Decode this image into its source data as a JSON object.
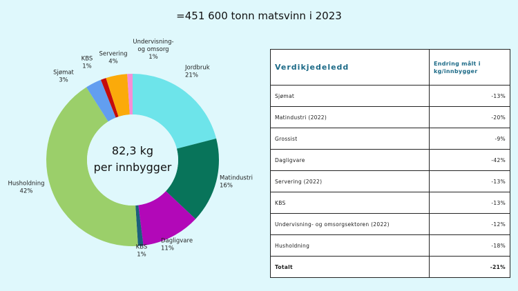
{
  "title": "=451 600 tonn matsvinn i 2023",
  "chart_data": {
    "type": "pie",
    "center_text": [
      "82,3 kg",
      "per innbygger"
    ],
    "slices": [
      {
        "label": "Jordbruk",
        "value": 21,
        "pct": "21%",
        "color": "#6de4ea"
      },
      {
        "label": "Matindustri",
        "value": 16,
        "pct": "16%",
        "color": "#08745a"
      },
      {
        "label": "Dagligvare",
        "value": 11,
        "pct": "11%",
        "color": "#b208b8"
      },
      {
        "label": "KBS",
        "value": 1,
        "pct": "1%",
        "color": "#1c5f7a"
      },
      {
        "label": "Husholdning",
        "value": 42,
        "pct": "42%",
        "color": "#9bcf6a"
      },
      {
        "label": "Sjømat",
        "value": 3,
        "pct": "3%",
        "color": "#629ef0"
      },
      {
        "label": "KBS",
        "value": 1,
        "pct": "1%",
        "color": "#c40c0c"
      },
      {
        "label": "Servering",
        "value": 4,
        "pct": "4%",
        "color": "#fbaa0a"
      },
      {
        "label": "Undervisning- og omsorg",
        "value": 1,
        "pct": "1%",
        "color": "#f78ed6"
      }
    ]
  },
  "table": {
    "header": [
      "Verdikjedeledd",
      "Endring målt i kg/innbygger"
    ],
    "rows": [
      {
        "name": "Sjømat",
        "value": "-13%"
      },
      {
        "name": "Matindustri (2022)",
        "value": "-20%"
      },
      {
        "name": "Grossist",
        "value": "-9%"
      },
      {
        "name": "Dagligvare",
        "value": "-42%"
      },
      {
        "name": "Servering (2022)",
        "value": "-13%"
      },
      {
        "name": "KBS",
        "value": "-13%"
      },
      {
        "name": "Undervisning- og omsorgsektoren (2022)",
        "value": "-12%"
      },
      {
        "name": "Husholdning",
        "value": "-18%"
      }
    ],
    "total": {
      "name": "Totalt",
      "value": "-21%"
    }
  }
}
